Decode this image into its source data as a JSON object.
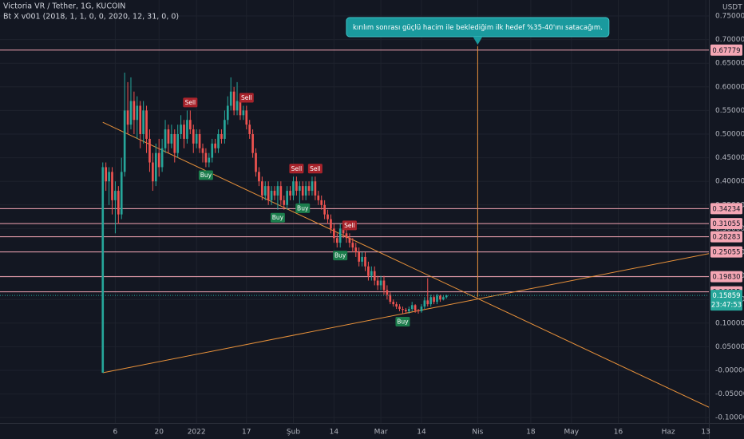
{
  "chart_data": {
    "type": "candlestick",
    "title": "Victoria VR / Tether, 1G, KUCOIN",
    "subtitle": "Bt X v001 (2018, 1, 1, 0, 0, 2020, 12, 31, 0, 0)",
    "y_axis_label": "USDT",
    "up_color": "#26a69a",
    "down_color": "#ef5350",
    "grid": true,
    "x": [
      1,
      2,
      3,
      4,
      5,
      6,
      7,
      8,
      9,
      10,
      11,
      12,
      13,
      14,
      15,
      16,
      17,
      18,
      19,
      20,
      21,
      22,
      23,
      24,
      25,
      26,
      27,
      28,
      29,
      30,
      31,
      32,
      33,
      34,
      35,
      36,
      37,
      38,
      39,
      40,
      41,
      42,
      43,
      44,
      45,
      46,
      47,
      48,
      49,
      50,
      51,
      52,
      53,
      54,
      55,
      56,
      57,
      58,
      59,
      60,
      61,
      62,
      63,
      64,
      65,
      66,
      67,
      68,
      69,
      70,
      71,
      72,
      73,
      74,
      75,
      76,
      77,
      78,
      79,
      80,
      81,
      82,
      83,
      84,
      85,
      86,
      87,
      88,
      89,
      90,
      91,
      92,
      93,
      94,
      95,
      96,
      97,
      98,
      99,
      100,
      101,
      102,
      103,
      104,
      105,
      106,
      107,
      108,
      109,
      110,
      111
    ],
    "open": [
      -0.005,
      0.43,
      0.4,
      0.42,
      0.36,
      0.38,
      0.33,
      0.42,
      0.55,
      0.52,
      0.57,
      0.53,
      0.56,
      0.5,
      0.55,
      0.49,
      0.44,
      0.4,
      0.46,
      0.43,
      0.47,
      0.51,
      0.48,
      0.5,
      0.46,
      0.5,
      0.52,
      0.49,
      0.53,
      0.51,
      0.48,
      0.5,
      0.47,
      0.46,
      0.44,
      0.45,
      0.48,
      0.47,
      0.5,
      0.49,
      0.53,
      0.56,
      0.59,
      0.55,
      0.57,
      0.54,
      0.55,
      0.52,
      0.5,
      0.46,
      0.42,
      0.4,
      0.37,
      0.39,
      0.36,
      0.38,
      0.37,
      0.39,
      0.36,
      0.35,
      0.38,
      0.37,
      0.4,
      0.38,
      0.39,
      0.37,
      0.39,
      0.38,
      0.4,
      0.37,
      0.36,
      0.35,
      0.33,
      0.32,
      0.3,
      0.28,
      0.27,
      0.3,
      0.29,
      0.28,
      0.27,
      0.26,
      0.25,
      0.23,
      0.24,
      0.22,
      0.2,
      0.21,
      0.19,
      0.18,
      0.19,
      0.17,
      0.16,
      0.145,
      0.14,
      0.135,
      0.13,
      0.128,
      0.125,
      0.13,
      0.138,
      0.127,
      0.125,
      0.135,
      0.148,
      0.14,
      0.155,
      0.145,
      0.158,
      0.15,
      0.155
    ],
    "high": [
      0.44,
      0.44,
      0.43,
      0.43,
      0.4,
      0.39,
      0.45,
      0.63,
      0.61,
      0.62,
      0.59,
      0.58,
      0.57,
      0.57,
      0.56,
      0.51,
      0.46,
      0.48,
      0.49,
      0.49,
      0.53,
      0.52,
      0.52,
      0.51,
      0.52,
      0.54,
      0.53,
      0.55,
      0.55,
      0.52,
      0.51,
      0.51,
      0.48,
      0.47,
      0.46,
      0.49,
      0.49,
      0.51,
      0.51,
      0.55,
      0.58,
      0.62,
      0.6,
      0.61,
      0.58,
      0.56,
      0.56,
      0.53,
      0.51,
      0.47,
      0.43,
      0.41,
      0.4,
      0.4,
      0.39,
      0.39,
      0.4,
      0.4,
      0.37,
      0.39,
      0.39,
      0.41,
      0.41,
      0.4,
      0.4,
      0.4,
      0.4,
      0.41,
      0.41,
      0.38,
      0.37,
      0.36,
      0.34,
      0.33,
      0.31,
      0.29,
      0.31,
      0.31,
      0.3,
      0.29,
      0.28,
      0.27,
      0.26,
      0.25,
      0.25,
      0.23,
      0.22,
      0.22,
      0.2,
      0.2,
      0.2,
      0.18,
      0.165,
      0.15,
      0.145,
      0.14,
      0.135,
      0.132,
      0.135,
      0.145,
      0.14,
      0.13,
      0.14,
      0.155,
      0.195,
      0.16,
      0.16,
      0.162,
      0.16,
      0.158,
      0.16
    ],
    "low": [
      -0.005,
      0.38,
      0.35,
      0.33,
      0.29,
      0.31,
      0.32,
      0.41,
      0.5,
      0.51,
      0.5,
      0.49,
      0.47,
      0.48,
      0.46,
      0.42,
      0.38,
      0.39,
      0.41,
      0.42,
      0.46,
      0.46,
      0.47,
      0.44,
      0.45,
      0.49,
      0.47,
      0.48,
      0.5,
      0.46,
      0.47,
      0.46,
      0.44,
      0.43,
      0.43,
      0.44,
      0.46,
      0.46,
      0.48,
      0.48,
      0.52,
      0.55,
      0.54,
      0.54,
      0.53,
      0.53,
      0.51,
      0.49,
      0.45,
      0.41,
      0.39,
      0.36,
      0.36,
      0.35,
      0.35,
      0.36,
      0.34,
      0.35,
      0.34,
      0.34,
      0.36,
      0.36,
      0.37,
      0.35,
      0.36,
      0.36,
      0.37,
      0.37,
      0.36,
      0.35,
      0.34,
      0.32,
      0.31,
      0.29,
      0.27,
      0.26,
      0.26,
      0.28,
      0.27,
      0.26,
      0.25,
      0.24,
      0.22,
      0.22,
      0.21,
      0.19,
      0.19,
      0.18,
      0.17,
      0.17,
      0.16,
      0.15,
      0.14,
      0.135,
      0.13,
      0.125,
      0.12,
      0.12,
      0.12,
      0.125,
      0.122,
      0.12,
      0.122,
      0.13,
      0.135,
      0.135,
      0.14,
      0.14,
      0.145,
      0.148,
      0.152
    ],
    "close": [
      0.43,
      0.4,
      0.42,
      0.36,
      0.38,
      0.33,
      0.42,
      0.55,
      0.52,
      0.57,
      0.53,
      0.56,
      0.5,
      0.55,
      0.49,
      0.44,
      0.4,
      0.46,
      0.43,
      0.47,
      0.51,
      0.48,
      0.5,
      0.46,
      0.5,
      0.52,
      0.49,
      0.53,
      0.51,
      0.48,
      0.5,
      0.47,
      0.46,
      0.44,
      0.45,
      0.48,
      0.47,
      0.5,
      0.49,
      0.53,
      0.56,
      0.59,
      0.55,
      0.57,
      0.54,
      0.55,
      0.52,
      0.5,
      0.46,
      0.42,
      0.4,
      0.37,
      0.39,
      0.36,
      0.38,
      0.37,
      0.39,
      0.36,
      0.35,
      0.38,
      0.37,
      0.4,
      0.38,
      0.39,
      0.37,
      0.39,
      0.38,
      0.4,
      0.37,
      0.36,
      0.35,
      0.33,
      0.32,
      0.3,
      0.28,
      0.27,
      0.3,
      0.29,
      0.28,
      0.27,
      0.26,
      0.25,
      0.23,
      0.24,
      0.22,
      0.2,
      0.21,
      0.19,
      0.18,
      0.19,
      0.17,
      0.16,
      0.145,
      0.14,
      0.135,
      0.13,
      0.128,
      0.125,
      0.13,
      0.138,
      0.127,
      0.125,
      0.135,
      0.148,
      0.14,
      0.155,
      0.145,
      0.158,
      0.15,
      0.155,
      0.15859
    ],
    "countdown": "23:47:53",
    "xlim": [
      -31.9,
      195.0
    ],
    "xticks": [
      {
        "value": 5,
        "label": "6"
      },
      {
        "value": 19,
        "label": "20"
      },
      {
        "value": 31,
        "label": "2022"
      },
      {
        "value": 47,
        "label": "17"
      },
      {
        "value": 62,
        "label": "Şub"
      },
      {
        "value": 75,
        "label": "14"
      },
      {
        "value": 90,
        "label": "Mar"
      },
      {
        "value": 103,
        "label": "14"
      },
      {
        "value": 121,
        "label": "Nis"
      },
      {
        "value": 138,
        "label": "18"
      },
      {
        "value": 151,
        "label": "May"
      },
      {
        "value": 166,
        "label": "16"
      },
      {
        "value": 182,
        "label": "Haz"
      },
      {
        "value": 194,
        "label": "13"
      }
    ],
    "ylim": [
      -0.1115,
      0.7838
    ],
    "yticks": [
      {
        "value": 0.75,
        "label": "0.75000"
      },
      {
        "value": 0.7,
        "label": "0.70000"
      },
      {
        "value": 0.65,
        "label": "0.65000"
      },
      {
        "value": 0.6,
        "label": "0.60000"
      },
      {
        "value": 0.55,
        "label": "0.55000"
      },
      {
        "value": 0.5,
        "label": "0.50000"
      },
      {
        "value": 0.45,
        "label": "0.45000"
      },
      {
        "value": 0.4,
        "label": "0.40000"
      },
      {
        "value": 0.35,
        "label": "0.35000"
      },
      {
        "value": 0.3,
        "label": "0.30000"
      },
      {
        "value": 0.25,
        "label": "0.25000"
      },
      {
        "value": 0.2,
        "label": "0.20000"
      },
      {
        "value": 0.15,
        "label": "0.15000"
      },
      {
        "value": 0.1,
        "label": "0.10000"
      },
      {
        "value": 0.05,
        "label": "0.05000"
      },
      {
        "value": 0,
        "label": "-0.00000"
      },
      {
        "value": -0.05,
        "label": "-0.05000"
      },
      {
        "value": -0.1,
        "label": "-0.10000"
      }
    ],
    "hline_color": "#f4a6b4",
    "hlines": [
      0.67779,
      0.34234,
      0.31055,
      0.28283,
      0.25055,
      {
        "value": 0.1983,
        "label": "0.19830"
      },
      0.16625
    ],
    "trend_color": "#e8913a",
    "trend_lines": [
      {
        "x": [
          1,
          195
        ],
        "y": [
          0.525,
          -0.078
        ]
      },
      {
        "x": [
          1,
          195
        ],
        "y": [
          -0.005,
          0.247
        ]
      }
    ],
    "annotation": {
      "text": "kırılım sonrası güçlü hacim ile beklediğim ilk hedef %35-40'ını satacağım.",
      "x": 121,
      "y": 0.155,
      "color": "#1a9a9e"
    },
    "signals": [
      {
        "label": "Sell",
        "x": 29,
        "color": "#a8232b",
        "position": "above"
      },
      {
        "label": "Buy",
        "x": 34,
        "color": "#1b7d4c",
        "position": "below"
      },
      {
        "label": "Sell",
        "x": 47,
        "color": "#a8232b",
        "position": "above"
      },
      {
        "label": "Buy",
        "x": 57,
        "color": "#1b7d4c",
        "position": "below"
      },
      {
        "label": "Sell",
        "x": 63,
        "color": "#a8232b",
        "position": "above"
      },
      {
        "label": "Buy",
        "x": 65,
        "color": "#1b7d4c",
        "position": "below"
      },
      {
        "label": "Sell",
        "x": 69,
        "color": "#a8232b",
        "position": "above"
      },
      {
        "label": "Buy",
        "x": 77,
        "color": "#1b7d4c",
        "position": "below"
      },
      {
        "label": "Sell",
        "x": 80,
        "color": "#a8232b",
        "position": "above"
      },
      {
        "label": "Buy",
        "x": 97,
        "color": "#1b7d4c",
        "position": "below"
      }
    ]
  }
}
